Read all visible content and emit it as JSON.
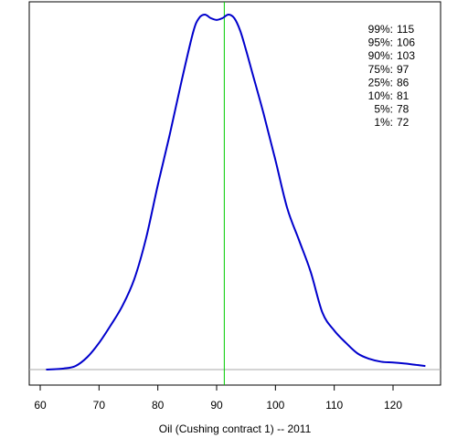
{
  "chart_data": {
    "type": "line",
    "title": "",
    "xlabel": "Oil (Cushing contract 1) -- 2011",
    "ylabel": "",
    "xlim": [
      59,
      127
    ],
    "ylim": [
      0,
      1
    ],
    "xticks": [
      60,
      70,
      80,
      90,
      100,
      110,
      120
    ],
    "grid": false,
    "series": [
      {
        "color": "#0000cc",
        "x": [
          61,
          64,
          66,
          68,
          70,
          72,
          74,
          76,
          78,
          80,
          82,
          84,
          86,
          87,
          88,
          89,
          90,
          91,
          92,
          93,
          94,
          95,
          96,
          98,
          100,
          102,
          104,
          106,
          108,
          110,
          112,
          114,
          116,
          118,
          120,
          122,
          124,
          125.5
        ],
        "y": [
          0.0,
          0.003,
          0.01,
          0.035,
          0.075,
          0.125,
          0.18,
          0.255,
          0.37,
          0.52,
          0.66,
          0.81,
          0.95,
          0.99,
          1.0,
          0.99,
          0.985,
          0.99,
          1.0,
          0.99,
          0.955,
          0.9,
          0.84,
          0.72,
          0.59,
          0.455,
          0.365,
          0.275,
          0.16,
          0.11,
          0.075,
          0.045,
          0.03,
          0.022,
          0.02,
          0.017,
          0.013,
          0.01
        ]
      }
    ],
    "reference_line": {
      "x": 91.3,
      "color": "#00cc00"
    },
    "baseline": {
      "y": 0,
      "color": "#aaaaaa"
    },
    "quantiles": [
      {
        "label": "99%:",
        "value": "115"
      },
      {
        "label": "95%:",
        "value": "106"
      },
      {
        "label": "90%:",
        "value": "103"
      },
      {
        "label": "75%:",
        "value": "97"
      },
      {
        "label": "25%:",
        "value": "86"
      },
      {
        "label": "10%:",
        "value": "81"
      },
      {
        "label": "5%:",
        "value": "78"
      },
      {
        "label": "1%:",
        "value": "72"
      }
    ]
  }
}
